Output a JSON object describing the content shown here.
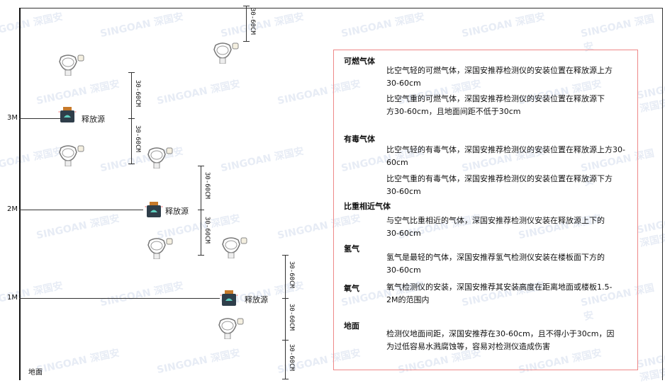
{
  "levels": {
    "m3": "3M",
    "m2": "2M",
    "m1": "1M",
    "ground": "地面"
  },
  "dimension_label": "30-60CM",
  "source_label": "释放源",
  "watermark": "SINGOAN 深国安",
  "notes": {
    "combustible": {
      "title": "可燃气体",
      "light": "比空气轻的可燃气体，深国安推荐检测仪的安装位置在释放源上方30-60cm",
      "heavy": "比空气重的可燃气体，深国安推荐检测仪的安装位置在释放源下方30-60cm，且地面间距不低于30cm"
    },
    "toxic": {
      "title": "有毒气体",
      "light": "比空气轻的有毒气体，深国安推荐检测仪的安装位置在释放源上方30-60cm",
      "heavy": "比空气重的有毒气体，深国安推荐检测仪的安装位置在释放源下方30-60cm"
    },
    "similar": {
      "title": "比重相近气体",
      "text": "与空气比重相近的气体，深国安推荐检测仪安装在释放源上下的30-60cm"
    },
    "hydrogen": {
      "title": "氢气",
      "text": "氢气是最轻的气体，深国安推荐氢气检测仪安装在楼板面下方的30-60cm"
    },
    "oxygen": {
      "title": "氧气",
      "text": "氧气检测仪的安装，深国安推荐其安装高度在距离地面或楼板1.5-2M的范围内"
    },
    "ground": {
      "title": "地面",
      "text": "检测仪地面间距，深国安推荐在30-60cm，且不得小于30cm，因为过低容易水溅腐蚀等，容易对检测仪造成伤害"
    }
  },
  "colors": {
    "box_border": "#ee8888",
    "source_body": "#2f3e4a",
    "source_icon": "#5fd0c0",
    "source_cap": "#c77a2a"
  }
}
